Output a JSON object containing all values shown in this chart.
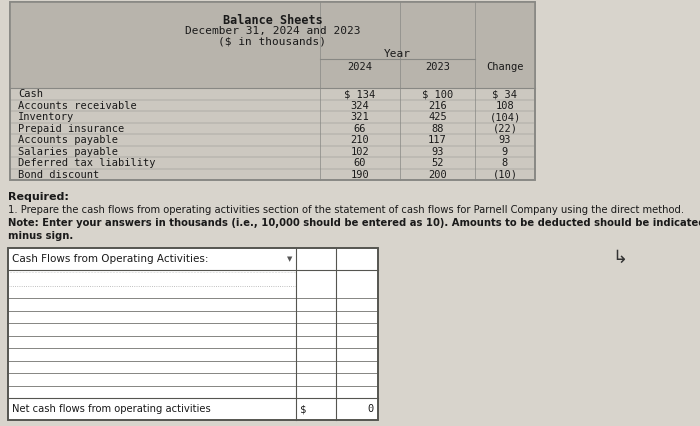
{
  "title": "Balance Sheets",
  "subtitle1": "December 31, 2024 and 2023",
  "subtitle2": "($ in thousands)",
  "col_year": "Year",
  "col_2024": "2024",
  "col_2023": "2023",
  "col_change": "Change",
  "rows": [
    {
      "label": "Cash",
      "v2024": "$ 134",
      "v2023": "$ 100",
      "change": "$ 34"
    },
    {
      "label": "Accounts receivable",
      "v2024": "324",
      "v2023": "216",
      "change": "108"
    },
    {
      "label": "Inventory",
      "v2024": "321",
      "v2023": "425",
      "change": "(104)"
    },
    {
      "label": "Prepaid insurance",
      "v2024": "66",
      "v2023": "88",
      "change": "(22)"
    },
    {
      "label": "Accounts payable",
      "v2024": "210",
      "v2023": "117",
      "change": "93"
    },
    {
      "label": "Salaries payable",
      "v2024": "102",
      "v2023": "93",
      "change": "9"
    },
    {
      "label": "Deferred tax liability",
      "v2024": "60",
      "v2023": "52",
      "change": "8"
    },
    {
      "label": "Bond discount",
      "v2024": "190",
      "v2023": "200",
      "change": "(10)"
    }
  ],
  "required_label": "Required:",
  "note_1": "1. Prepare the cash flows from operating activities section of the statement of cash flows for Parnell Company using the direct method.",
  "note_2a": "Note: Enter your answers in thousands (i.e., 10,000 should be entered as 10). Amounts to be deducted should be indicated with a",
  "note_2b": "minus sign.",
  "section_header": "Cash Flows from Operating Activities:",
  "n_input_rows": 9,
  "net_label": "Net cash flows from operating activities",
  "net_dollar": "$",
  "net_value": "0",
  "body_bg": "#d8d4cc",
  "table_bg": "#ccc8c0",
  "table_header_bg": "#b8b4ac",
  "table_border": "#888884",
  "input_bg": "#ffffff",
  "input_border": "#555550",
  "text_color": "#1a1a1a",
  "mono_font": "DejaVu Sans Mono",
  "sans_font": "DejaVu Sans"
}
